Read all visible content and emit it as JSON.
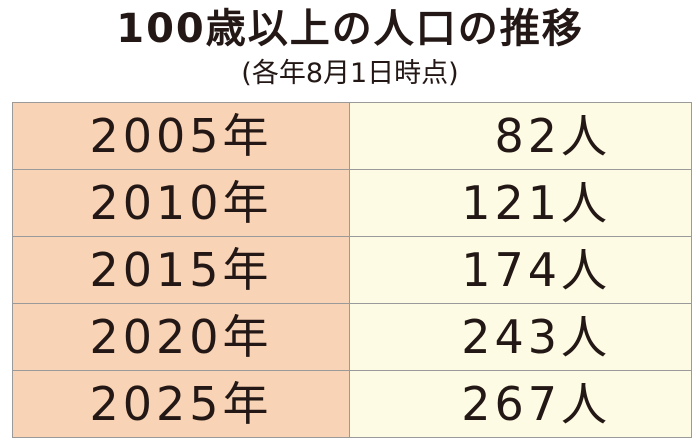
{
  "header": {
    "title": "100歳以上の人口の推移",
    "subtitle": "(各年8月1日時点)"
  },
  "table": {
    "rows": [
      [
        "2005年",
        "82人"
      ],
      [
        "2010年",
        "121人"
      ],
      [
        "2015年",
        "174人"
      ],
      [
        "2020年",
        "243人"
      ],
      [
        "2025年",
        "267人"
      ]
    ]
  }
}
